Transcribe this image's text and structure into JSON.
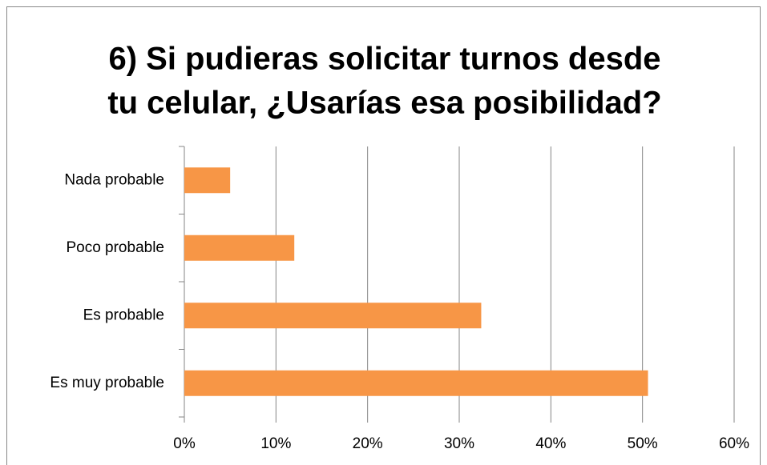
{
  "chart_data": {
    "type": "barh",
    "title": [
      "6) Si pudieras solicitar turnos desde",
      "tu celular, ¿Usarías esa posibilidad?"
    ],
    "categories": [
      "Nada probable",
      "Poco probable",
      "Es probable",
      "Es muy probable"
    ],
    "values": [
      5,
      12,
      32.4,
      50.6
    ],
    "color": "#f79646",
    "xlim": [
      0,
      60
    ],
    "xticks": [
      {
        "value": 0,
        "label": "0%"
      },
      {
        "value": 10,
        "label": "10%"
      },
      {
        "value": 20,
        "label": "20%"
      },
      {
        "value": 30,
        "label": "30%"
      },
      {
        "value": 40,
        "label": "40%"
      },
      {
        "value": 50,
        "label": "50%"
      },
      {
        "value": 60,
        "label": "60%"
      }
    ],
    "grid": true
  }
}
